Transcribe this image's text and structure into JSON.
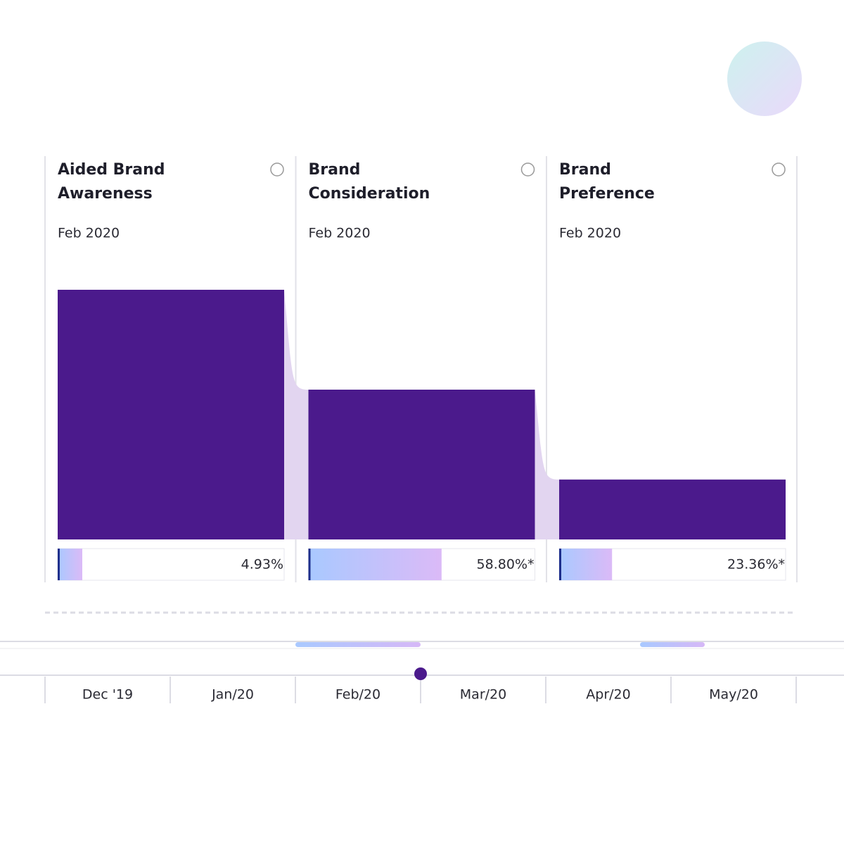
{
  "cards": [
    {
      "title_lines": [
        "Aided Brand",
        "Awareness"
      ],
      "period": "Feb 2020",
      "bar_value": 100,
      "percent": {
        "value": 4.93,
        "label": "4.93%"
      }
    },
    {
      "title_lines": [
        "Brand",
        "Consideration"
      ],
      "period": "Feb 2020",
      "bar_value": 60,
      "percent": {
        "value": 58.8,
        "label": "58.80%*"
      }
    },
    {
      "title_lines": [
        "Brand",
        "Preference"
      ],
      "period": "Feb 2020",
      "bar_value": 24,
      "percent": {
        "value": 23.36,
        "label": "23.36%*"
      }
    }
  ],
  "timeline": {
    "months": [
      "Dec '19",
      "Jan/20",
      "Feb/20",
      "Mar/20",
      "Apr/20",
      "May/20"
    ]
  }
}
